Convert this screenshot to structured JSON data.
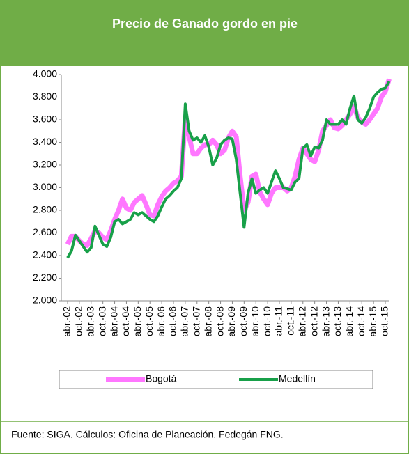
{
  "chart_data": {
    "type": "line",
    "title": "Precio de Ganado gordo en pie",
    "source": "Fuente: SIGA. Cálculos: Oficina de Planeación. Fedegán FNG.",
    "categories": [
      "abr.-02",
      null,
      null,
      "oct.-02",
      null,
      null,
      "abr.-03",
      null,
      null,
      "oct.-03",
      null,
      null,
      "abr.-04",
      null,
      null,
      "oct.-04",
      null,
      null,
      "abr.-05",
      null,
      null,
      "oct.-05",
      null,
      null,
      "abr.-06",
      null,
      null,
      "oct.-06",
      null,
      null,
      "abr.-07",
      null,
      null,
      "oct.-07",
      null,
      null,
      "abr.-08",
      null,
      null,
      "oct.-08",
      null,
      null,
      "abr.-09",
      null,
      null,
      "oct.-09",
      null,
      null,
      "abr.-10",
      null,
      null,
      "oct.-10",
      null,
      null,
      "abr.-11",
      null,
      null,
      "oct.-11",
      null,
      null,
      "abr.-12",
      null,
      null,
      "oct.-12",
      null,
      null,
      "abr.-13",
      null,
      null,
      "oct.-13",
      null,
      null,
      "abr.-14",
      null,
      null,
      "oct.-14",
      null,
      null,
      "abr.-15",
      null,
      null,
      "oct.-15",
      null
    ],
    "series": [
      {
        "name": "Bogotá",
        "color": "#ff77ff",
        "values": [
          2500,
          2570,
          2570,
          2530,
          2500,
          2490,
          2550,
          2620,
          2600,
          2560,
          2540,
          2620,
          2720,
          2800,
          2900,
          2820,
          2800,
          2870,
          2900,
          2930,
          2850,
          2760,
          2750,
          2850,
          2920,
          2970,
          3000,
          3040,
          3060,
          3100,
          3620,
          3450,
          3300,
          3300,
          3350,
          3380,
          3380,
          3420,
          3380,
          3300,
          3330,
          3440,
          3500,
          3450,
          3100,
          2800,
          2870,
          3100,
          3120,
          2960,
          2900,
          2850,
          2950,
          3000,
          3000,
          3000,
          2970,
          3000,
          3100,
          3250,
          3350,
          3300,
          3250,
          3230,
          3330,
          3500,
          3550,
          3600,
          3530,
          3520,
          3550,
          3600,
          3650,
          3720,
          3620,
          3580,
          3560,
          3600,
          3650,
          3700,
          3800,
          3850,
          3960
        ]
      },
      {
        "name": "Medellín",
        "color": "#18a049",
        "values": [
          2380,
          2440,
          2580,
          2530,
          2480,
          2430,
          2470,
          2660,
          2580,
          2500,
          2480,
          2560,
          2700,
          2720,
          2680,
          2700,
          2720,
          2780,
          2760,
          2780,
          2750,
          2720,
          2700,
          2750,
          2830,
          2900,
          2930,
          2970,
          3000,
          3080,
          3740,
          3500,
          3420,
          3440,
          3400,
          3460,
          3360,
          3200,
          3260,
          3380,
          3420,
          3440,
          3430,
          3250,
          2950,
          2650,
          2950,
          3080,
          2950,
          2980,
          3000,
          2950,
          3050,
          3150,
          3080,
          3000,
          2990,
          2980,
          3050,
          3080,
          3350,
          3380,
          3280,
          3360,
          3350,
          3420,
          3600,
          3560,
          3560,
          3560,
          3600,
          3560,
          3700,
          3810,
          3600,
          3570,
          3620,
          3700,
          3800,
          3840,
          3870,
          3880,
          3940
        ]
      }
    ],
    "ylim": [
      2000,
      4000
    ],
    "yticks": [
      {
        "value": 2000,
        "label": "2.000"
      },
      {
        "value": 2200,
        "label": "2.200"
      },
      {
        "value": 2400,
        "label": "2.400"
      },
      {
        "value": 2600,
        "label": "2.600"
      },
      {
        "value": 2800,
        "label": "2.800"
      },
      {
        "value": 3000,
        "label": "3.000"
      },
      {
        "value": 3200,
        "label": "3.200"
      },
      {
        "value": 3400,
        "label": "3.400"
      },
      {
        "value": 3600,
        "label": "3.600"
      },
      {
        "value": 3800,
        "label": "3.800"
      },
      {
        "value": 4000,
        "label": "4.000"
      }
    ],
    "grid": false
  }
}
